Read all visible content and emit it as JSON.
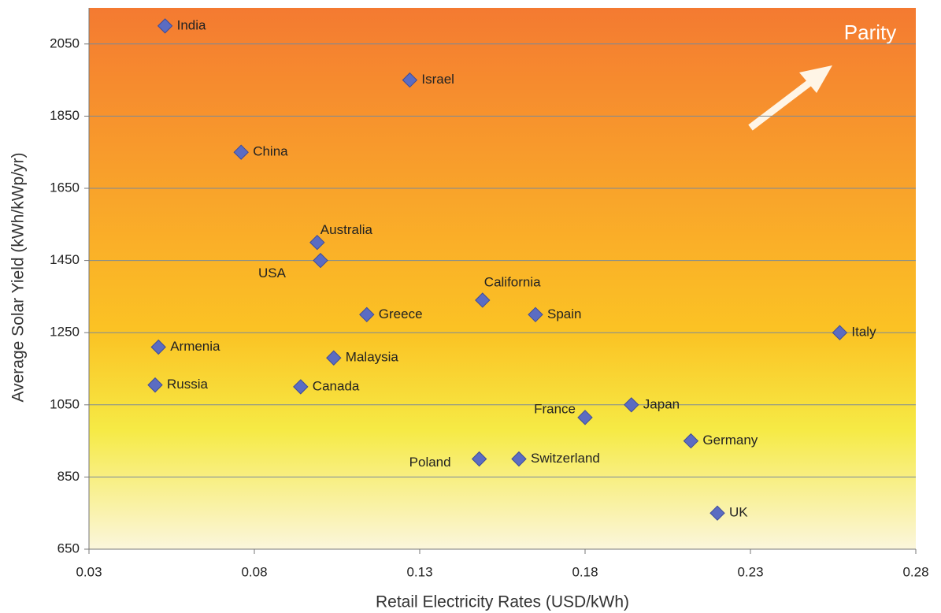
{
  "chart_data": {
    "type": "scatter",
    "xlabel": "Retail Electricity Rates (USD/kWh)",
    "ylabel": "Average Solar Yield (kWh/kWp/yr)",
    "annotation": "Parity",
    "series": [
      {
        "color": "#5b6cc2",
        "labels": [
          "India",
          "Israel",
          "China",
          "Australia",
          "USA",
          "California",
          "Greece",
          "Spain",
          "Italy",
          "Armenia",
          "Malaysia",
          "Russia",
          "Canada",
          "Japan",
          "France",
          "Germany",
          "Poland",
          "Switzerland",
          "UK"
        ],
        "x": [
          0.053,
          0.127,
          0.076,
          0.099,
          0.1,
          0.149,
          0.114,
          0.165,
          0.257,
          0.051,
          0.104,
          0.05,
          0.094,
          0.194,
          0.18,
          0.212,
          0.148,
          0.16,
          0.22
        ],
        "values": [
          2100,
          1950,
          1750,
          1500,
          1450,
          1340,
          1300,
          1300,
          1250,
          1210,
          1180,
          1105,
          1100,
          1050,
          1015,
          950,
          900,
          900,
          750
        ]
      }
    ],
    "xlim": [
      0.03,
      0.28
    ],
    "xticks": [
      0.03,
      0.08,
      0.13,
      0.18,
      0.23,
      0.28
    ],
    "ylim": [
      650,
      2150
    ],
    "yticks": [
      650,
      850,
      1050,
      1250,
      1450,
      1650,
      1850,
      2050
    ],
    "grid": true
  }
}
